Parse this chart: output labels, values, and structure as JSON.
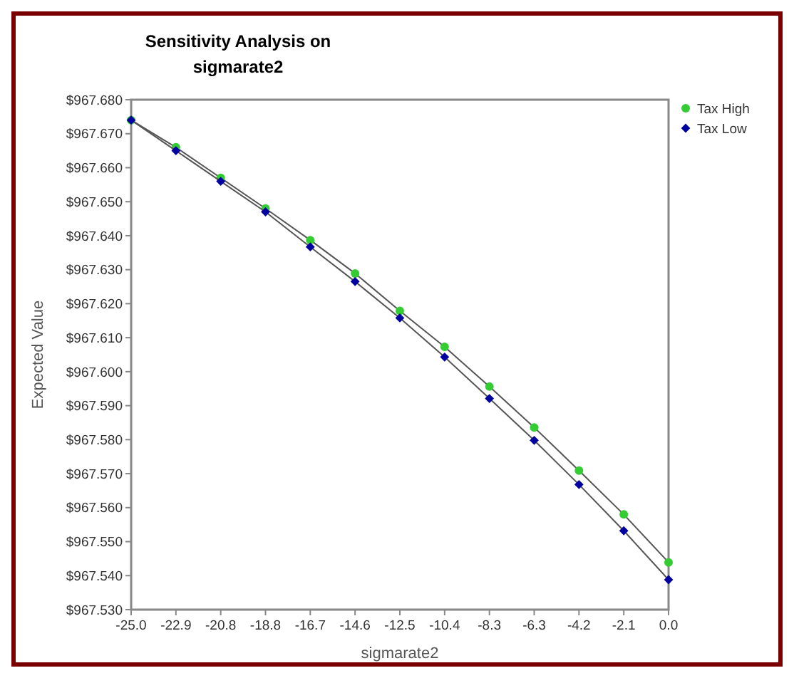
{
  "chart_data": {
    "type": "line",
    "title": "Sensitivity Analysis on sigmarate2",
    "xlabel": "sigmarate2",
    "ylabel": "Expected Value",
    "x": [
      -25,
      -22.917,
      -20.833,
      -18.75,
      -16.667,
      -14.583,
      -12.5,
      -10.417,
      -8.333,
      -6.25,
      -4.167,
      -2.083,
      0
    ],
    "series": [
      {
        "name": "Tax High",
        "color": "#33cc33",
        "marker": "circle",
        "values": [
          967.674,
          967.666,
          967.657,
          967.648,
          967.6387,
          967.6289,
          967.6179,
          967.6073,
          967.5956,
          967.5836,
          967.5709,
          967.558,
          967.5439
        ]
      },
      {
        "name": "Tax Low",
        "color": "#0000a0",
        "marker": "diamond",
        "values": [
          967.674,
          967.665,
          967.656,
          967.647,
          967.6367,
          967.6265,
          967.6158,
          967.6043,
          967.5921,
          967.5798,
          967.5668,
          967.5532,
          967.5388
        ]
      }
    ],
    "xlim": [
      -25,
      0
    ],
    "xticks": [
      {
        "value": -25,
        "label": "-25.0"
      },
      {
        "value": -22.917,
        "label": "-22.9"
      },
      {
        "value": -20.833,
        "label": "-20.8"
      },
      {
        "value": -18.75,
        "label": "-18.8"
      },
      {
        "value": -16.667,
        "label": "-16.7"
      },
      {
        "value": -14.583,
        "label": "-14.6"
      },
      {
        "value": -12.5,
        "label": "-12.5"
      },
      {
        "value": -10.417,
        "label": "-10.4"
      },
      {
        "value": -8.333,
        "label": "-8.3"
      },
      {
        "value": -6.25,
        "label": "-6.3"
      },
      {
        "value": -4.167,
        "label": "-4.2"
      },
      {
        "value": -2.083,
        "label": "-2.1"
      },
      {
        "value": 0,
        "label": "0.0"
      }
    ],
    "ylim": [
      967.53,
      967.68
    ],
    "yticks": [
      {
        "value": 967.53,
        "label": "$967.530"
      },
      {
        "value": 967.54,
        "label": "$967.540"
      },
      {
        "value": 967.55,
        "label": "$967.550"
      },
      {
        "value": 967.56,
        "label": "$967.560"
      },
      {
        "value": 967.57,
        "label": "$967.570"
      },
      {
        "value": 967.58,
        "label": "$967.580"
      },
      {
        "value": 967.59,
        "label": "$967.590"
      },
      {
        "value": 967.6,
        "label": "$967.600"
      },
      {
        "value": 967.61,
        "label": "$967.610"
      },
      {
        "value": 967.62,
        "label": "$967.620"
      },
      {
        "value": 967.63,
        "label": "$967.630"
      },
      {
        "value": 967.64,
        "label": "$967.640"
      },
      {
        "value": 967.65,
        "label": "$967.650"
      },
      {
        "value": 967.66,
        "label": "$967.660"
      },
      {
        "value": 967.67,
        "label": "$967.670"
      },
      {
        "value": 967.68,
        "label": "$967.680"
      }
    ],
    "grid": false,
    "legend": "top right",
    "marker": "circle",
    "line_style": "solid"
  }
}
